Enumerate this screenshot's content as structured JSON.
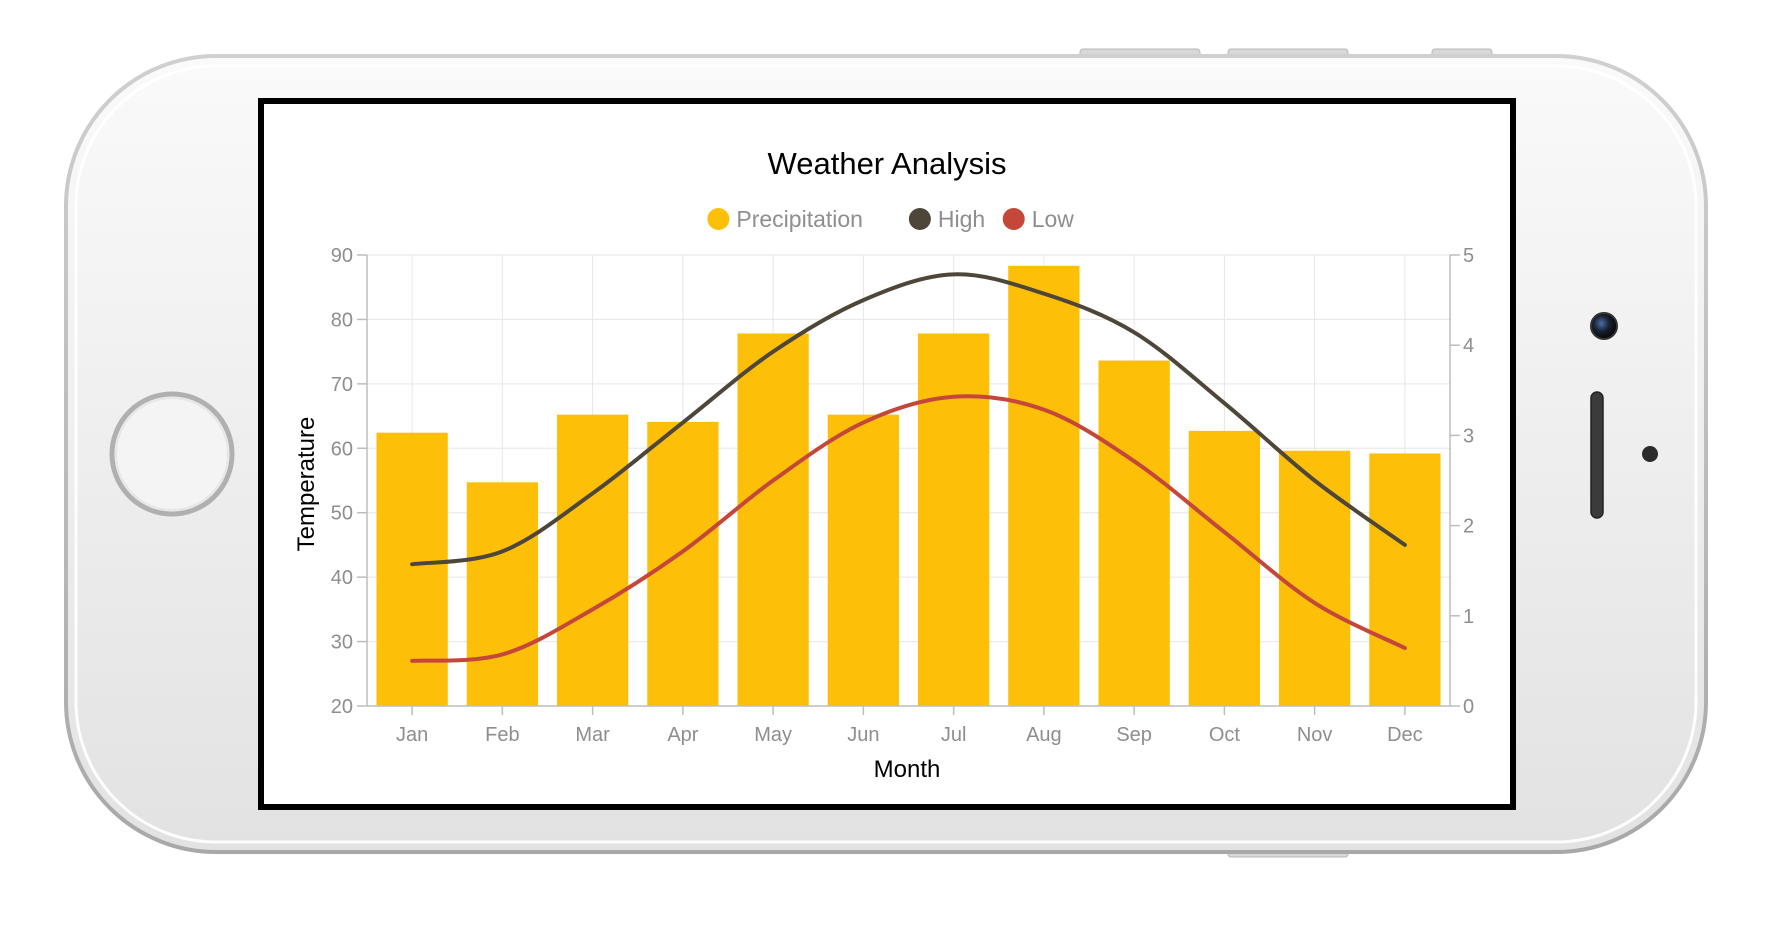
{
  "chart_data": {
    "type": "bar",
    "title": "Weather Analysis",
    "xlabel": "Month",
    "ylabel": "Temperature",
    "categories": [
      "Jan",
      "Feb",
      "Mar",
      "Apr",
      "May",
      "Jun",
      "Jul",
      "Aug",
      "Sep",
      "Oct",
      "Nov",
      "Dec"
    ],
    "ylim": [
      20,
      90
    ],
    "y_ticks": [
      20,
      30,
      40,
      50,
      60,
      70,
      80,
      90
    ],
    "y2lim": [
      0,
      5
    ],
    "y2_ticks": [
      0,
      1,
      2,
      3,
      4,
      5
    ],
    "grid": true,
    "legend_position": "top-center",
    "series": [
      {
        "name": "Precipitation",
        "kind": "bar",
        "axis": "right",
        "color": "#FDBF08",
        "values": [
          3.03,
          2.48,
          3.23,
          3.15,
          4.13,
          3.23,
          4.13,
          4.88,
          3.83,
          3.05,
          2.83,
          2.8
        ]
      },
      {
        "name": "High",
        "kind": "spline",
        "axis": "left",
        "color": "#4E4638",
        "values": [
          42,
          44,
          53,
          64,
          75,
          83,
          87,
          84,
          78,
          67,
          55,
          45
        ]
      },
      {
        "name": "Low",
        "kind": "spline",
        "axis": "left",
        "color": "#C4473A",
        "values": [
          27,
          28,
          35,
          44,
          55,
          64,
          68,
          66,
          58,
          47,
          36,
          29
        ]
      }
    ]
  }
}
